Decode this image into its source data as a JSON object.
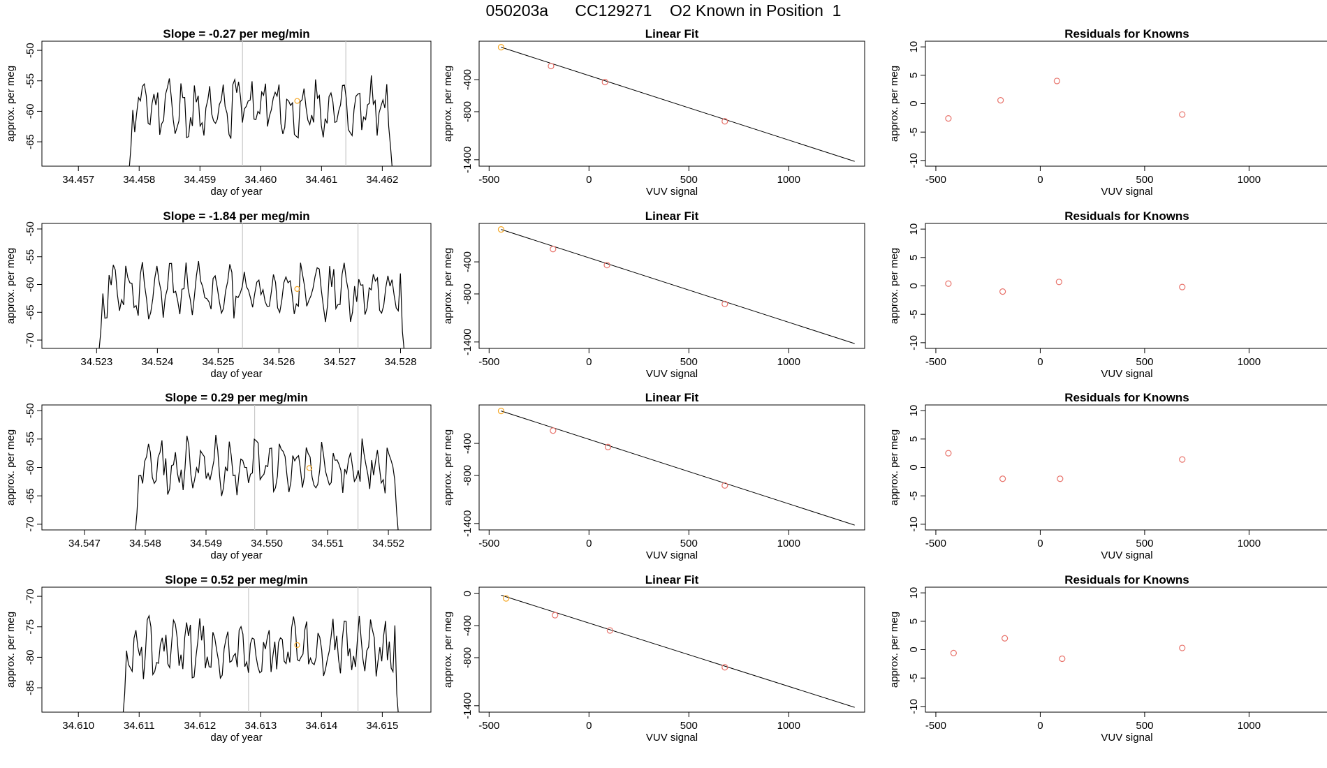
{
  "title": "050203a      CC129271    O2 Known in Position  1",
  "colors": {
    "line": "#000000",
    "points": "#e8736b",
    "highlight": "#f5a623",
    "vline": "#c8c8c8"
  },
  "rows": [
    {
      "slope_title": "Slope =  -0.27  per meg/min",
      "timeseries": {
        "xlabel": "day of year",
        "ylabel": "approx. per meg",
        "xlim": [
          34.4564,
          34.4628
        ],
        "ylim": [
          -69,
          -48.5
        ],
        "xticks": [
          34.457,
          34.458,
          34.459,
          34.46,
          34.461,
          34.462
        ],
        "xtick_labels": [
          "34.457",
          "34.458",
          "34.459",
          "34.460",
          "34.461",
          "34.462"
        ],
        "yticks": [
          -65,
          -60,
          -55,
          -50
        ],
        "ytick_labels": [
          "-65",
          "-60",
          "-55",
          "-50"
        ],
        "vlines": [
          34.4597,
          34.4614
        ],
        "x_start": 34.4578,
        "x_end": 34.4622,
        "n": 140,
        "seed": 11,
        "base": -59.5,
        "amp": 3.2,
        "highlight": [
          34.4606,
          -58.3
        ]
      },
      "fit": {
        "title": "Linear Fit",
        "xlabel": "VUV signal",
        "ylabel": "approx. per meg",
        "xlim": [
          -550,
          1380
        ],
        "ylim": [
          -1480,
          80
        ],
        "xticks": [
          -500,
          0,
          500,
          1000
        ],
        "xtick_labels": [
          "-500",
          "0",
          "500",
          "1000"
        ],
        "yticks": [
          -1400,
          -800,
          -400
        ],
        "ytick_labels": [
          "-1400",
          "-800",
          "-400"
        ],
        "line": [
          [
            -440,
            5
          ],
          [
            1330,
            -1420
          ]
        ],
        "points": [
          [
            -440,
            5
          ],
          [
            -190,
            -230
          ],
          [
            80,
            -430
          ],
          [
            680,
            -920
          ]
        ],
        "highlight_index": 0
      },
      "residuals": {
        "title": "Residuals for Knowns",
        "xlabel": "VUV signal",
        "ylabel": "approx. per meg",
        "xlim": [
          -550,
          1380
        ],
        "ylim": [
          -11,
          11
        ],
        "xticks": [
          -500,
          0,
          500,
          1000
        ],
        "xtick_labels": [
          "-500",
          "0",
          "500",
          "1000"
        ],
        "yticks": [
          -10,
          -5,
          0,
          5,
          10
        ],
        "ytick_labels": [
          "-10",
          "-5",
          "0",
          "5",
          "10"
        ],
        "points": [
          [
            -440,
            -2.6
          ],
          [
            -190,
            0.6
          ],
          [
            80,
            4.0
          ],
          [
            680,
            -1.9
          ]
        ]
      }
    },
    {
      "slope_title": "Slope =  -1.84  per meg/min",
      "timeseries": {
        "xlabel": "day of year",
        "ylabel": "approx. per meg",
        "xlim": [
          34.5221,
          34.5285
        ],
        "ylim": [
          -71.5,
          -49
        ],
        "xticks": [
          34.523,
          34.524,
          34.525,
          34.526,
          34.527,
          34.528
        ],
        "xtick_labels": [
          "34.523",
          "34.524",
          "34.525",
          "34.526",
          "34.527",
          "34.528"
        ],
        "yticks": [
          -70,
          -65,
          -60,
          -55,
          -50
        ],
        "ytick_labels": [
          "-70",
          "-65",
          "-60",
          "-55",
          "-50"
        ],
        "vlines": [
          34.5254,
          34.5273
        ],
        "x_start": 34.523,
        "x_end": 34.5281,
        "n": 150,
        "seed": 23,
        "base": -61.2,
        "amp": 3.4,
        "highlight": [
          34.5263,
          -60.8
        ]
      },
      "fit": {
        "title": "Linear Fit",
        "xlabel": "VUV signal",
        "ylabel": "approx. per meg",
        "xlim": [
          -550,
          1380
        ],
        "ylim": [
          -1480,
          80
        ],
        "xticks": [
          -500,
          0,
          500,
          1000
        ],
        "xtick_labels": [
          "-500",
          "0",
          "500",
          "1000"
        ],
        "yticks": [
          -1400,
          -800,
          -400
        ],
        "ytick_labels": [
          "-1400",
          "-800",
          "-400"
        ],
        "line": [
          [
            -440,
            5
          ],
          [
            1330,
            -1420
          ]
        ],
        "points": [
          [
            -440,
            5
          ],
          [
            -180,
            -240
          ],
          [
            90,
            -440
          ],
          [
            680,
            -925
          ]
        ],
        "highlight_index": 0
      },
      "residuals": {
        "title": "Residuals for Knowns",
        "xlabel": "VUV signal",
        "ylabel": "approx. per meg",
        "xlim": [
          -550,
          1380
        ],
        "ylim": [
          -11,
          11
        ],
        "xticks": [
          -500,
          0,
          500,
          1000
        ],
        "xtick_labels": [
          "-500",
          "0",
          "500",
          "1000"
        ],
        "yticks": [
          -10,
          -5,
          0,
          5,
          10
        ],
        "ytick_labels": [
          "-10",
          "-5",
          "0",
          "5",
          "10"
        ],
        "points": [
          [
            -440,
            0.4
          ],
          [
            -180,
            -1.0
          ],
          [
            90,
            0.7
          ],
          [
            680,
            -0.2
          ]
        ]
      }
    },
    {
      "slope_title": "Slope =  0.29  per meg/min",
      "timeseries": {
        "xlabel": "day of year",
        "ylabel": "approx. per meg",
        "xlim": [
          34.5463,
          34.5527
        ],
        "ylim": [
          -71,
          -49
        ],
        "xticks": [
          34.547,
          34.548,
          34.549,
          34.55,
          34.551,
          34.552
        ],
        "xtick_labels": [
          "34.547",
          "34.548",
          "34.549",
          "34.550",
          "34.551",
          "34.552"
        ],
        "yticks": [
          -70,
          -65,
          -60,
          -55,
          -50
        ],
        "ytick_labels": [
          "-70",
          "-65",
          "-60",
          "-55",
          "-50"
        ],
        "vlines": [
          34.5498,
          34.5515
        ],
        "x_start": 34.5478,
        "x_end": 34.5522,
        "n": 140,
        "seed": 37,
        "base": -59.8,
        "amp": 3.3,
        "highlight": [
          34.5507,
          -60.1
        ]
      },
      "fit": {
        "title": "Linear Fit",
        "xlabel": "VUV signal",
        "ylabel": "approx. per meg",
        "xlim": [
          -550,
          1380
        ],
        "ylim": [
          -1480,
          80
        ],
        "xticks": [
          -500,
          0,
          500,
          1000
        ],
        "xtick_labels": [
          "-500",
          "0",
          "500",
          "1000"
        ],
        "yticks": [
          -1400,
          -800,
          -400
        ],
        "ytick_labels": [
          "-1400",
          "-800",
          "-400"
        ],
        "line": [
          [
            -440,
            5
          ],
          [
            1330,
            -1420
          ]
        ],
        "points": [
          [
            -440,
            5
          ],
          [
            -180,
            -240
          ],
          [
            95,
            -445
          ],
          [
            680,
            -925
          ]
        ],
        "highlight_index": 0
      },
      "residuals": {
        "title": "Residuals for Knowns",
        "xlabel": "VUV signal",
        "ylabel": "approx. per meg",
        "xlim": [
          -550,
          1380
        ],
        "ylim": [
          -11,
          11
        ],
        "xticks": [
          -500,
          0,
          500,
          1000
        ],
        "xtick_labels": [
          "-500",
          "0",
          "500",
          "1000"
        ],
        "yticks": [
          -10,
          -5,
          0,
          5,
          10
        ],
        "ytick_labels": [
          "-10",
          "-5",
          "0",
          "5",
          "10"
        ],
        "points": [
          [
            -440,
            2.5
          ],
          [
            -180,
            -2.0
          ],
          [
            95,
            -2.0
          ],
          [
            680,
            1.4
          ]
        ]
      }
    },
    {
      "slope_title": "Slope =  0.52  per meg/min",
      "timeseries": {
        "xlabel": "day of year",
        "ylabel": "approx. per meg",
        "xlim": [
          34.6094,
          34.6158
        ],
        "ylim": [
          -89,
          -68.5
        ],
        "xticks": [
          34.61,
          34.611,
          34.612,
          34.613,
          34.614,
          34.615
        ],
        "xtick_labels": [
          "34.610",
          "34.611",
          "34.612",
          "34.613",
          "34.614",
          "34.615"
        ],
        "yticks": [
          -85,
          -80,
          -75,
          -70
        ],
        "ytick_labels": [
          "-85",
          "-80",
          "-75",
          "-70"
        ],
        "vlines": [
          34.6128,
          34.6146
        ],
        "x_start": 34.6107,
        "x_end": 34.6153,
        "n": 150,
        "seed": 53,
        "base": -78.5,
        "amp": 3.2,
        "highlight": [
          34.6136,
          -78.0
        ]
      },
      "fit": {
        "title": "Linear Fit",
        "xlabel": "VUV signal",
        "ylabel": "approx. per meg",
        "xlim": [
          -550,
          1380
        ],
        "ylim": [
          -1480,
          80
        ],
        "xticks": [
          -500,
          0,
          500,
          1000
        ],
        "xtick_labels": [
          "-500",
          "0",
          "500",
          "1000"
        ],
        "yticks": [
          -1400,
          -800,
          -400,
          0
        ],
        "ytick_labels": [
          "-1400",
          "-800",
          "-400",
          "0"
        ],
        "line": [
          [
            -440,
            -20
          ],
          [
            1330,
            -1420
          ]
        ],
        "points": [
          [
            -415,
            -60
          ],
          [
            -170,
            -270
          ],
          [
            105,
            -460
          ],
          [
            680,
            -920
          ]
        ],
        "highlight_index": 0
      },
      "residuals": {
        "title": "Residuals for Knowns",
        "xlabel": "VUV signal",
        "ylabel": "approx. per meg",
        "xlim": [
          -550,
          1380
        ],
        "ylim": [
          -11,
          11
        ],
        "xticks": [
          -500,
          0,
          500,
          1000
        ],
        "xtick_labels": [
          "-500",
          "0",
          "500",
          "1000"
        ],
        "yticks": [
          -10,
          -5,
          0,
          5,
          10
        ],
        "ytick_labels": [
          "-10",
          "-5",
          "0",
          "5",
          "10"
        ],
        "points": [
          [
            -415,
            -0.6
          ],
          [
            -170,
            2.0
          ],
          [
            105,
            -1.6
          ],
          [
            680,
            0.3
          ]
        ]
      }
    }
  ],
  "chart_data": [
    {
      "type": "line",
      "title": "Slope =  -0.27  per meg/min",
      "xlabel": "day of year",
      "ylabel": "approx. per meg",
      "xlim": [
        34.4564,
        34.4628
      ],
      "ylim": [
        -69,
        -48.5
      ]
    },
    {
      "type": "scatter",
      "title": "Linear Fit",
      "xlabel": "VUV signal",
      "ylabel": "approx. per meg",
      "x": [
        -440,
        -190,
        80,
        680
      ],
      "y": [
        5,
        -230,
        -430,
        -920
      ]
    },
    {
      "type": "scatter",
      "title": "Residuals for Knowns",
      "xlabel": "VUV signal",
      "ylabel": "approx. per meg",
      "x": [
        -440,
        -190,
        80,
        680
      ],
      "y": [
        -2.6,
        0.6,
        4.0,
        -1.9
      ]
    },
    {
      "type": "line",
      "title": "Slope =  -1.84  per meg/min",
      "xlabel": "day of year",
      "ylabel": "approx. per meg",
      "xlim": [
        34.5221,
        34.5285
      ],
      "ylim": [
        -71.5,
        -49
      ]
    },
    {
      "type": "scatter",
      "title": "Linear Fit",
      "xlabel": "VUV signal",
      "ylabel": "approx. per meg",
      "x": [
        -440,
        -180,
        90,
        680
      ],
      "y": [
        5,
        -240,
        -440,
        -925
      ]
    },
    {
      "type": "scatter",
      "title": "Residuals for Knowns",
      "xlabel": "VUV signal",
      "ylabel": "approx. per meg",
      "x": [
        -440,
        -180,
        90,
        680
      ],
      "y": [
        0.4,
        -1.0,
        0.7,
        -0.2
      ]
    },
    {
      "type": "line",
      "title": "Slope =  0.29  per meg/min",
      "xlabel": "day of year",
      "ylabel": "approx. per meg",
      "xlim": [
        34.5463,
        34.5527
      ],
      "ylim": [
        -71,
        -49
      ]
    },
    {
      "type": "scatter",
      "title": "Linear Fit",
      "xlabel": "VUV signal",
      "ylabel": "approx. per meg",
      "x": [
        -440,
        -180,
        95,
        680
      ],
      "y": [
        5,
        -240,
        -445,
        -925
      ]
    },
    {
      "type": "scatter",
      "title": "Residuals for Knowns",
      "xlabel": "VUV signal",
      "ylabel": "approx. per meg",
      "x": [
        -440,
        -180,
        95,
        680
      ],
      "y": [
        2.5,
        -2.0,
        -2.0,
        1.4
      ]
    },
    {
      "type": "line",
      "title": "Slope =  0.52  per meg/min",
      "xlabel": "day of year",
      "ylabel": "approx. per meg",
      "xlim": [
        34.6094,
        34.6158
      ],
      "ylim": [
        -89,
        -68.5
      ]
    },
    {
      "type": "scatter",
      "title": "Linear Fit",
      "xlabel": "VUV signal",
      "ylabel": "approx. per meg",
      "x": [
        -415,
        -170,
        105,
        680
      ],
      "y": [
        -60,
        -270,
        -460,
        -920
      ]
    },
    {
      "type": "scatter",
      "title": "Residuals for Knowns",
      "xlabel": "VUV signal",
      "ylabel": "approx. per meg",
      "x": [
        -415,
        -170,
        105,
        680
      ],
      "y": [
        -0.6,
        2.0,
        -1.6,
        0.3
      ]
    }
  ]
}
